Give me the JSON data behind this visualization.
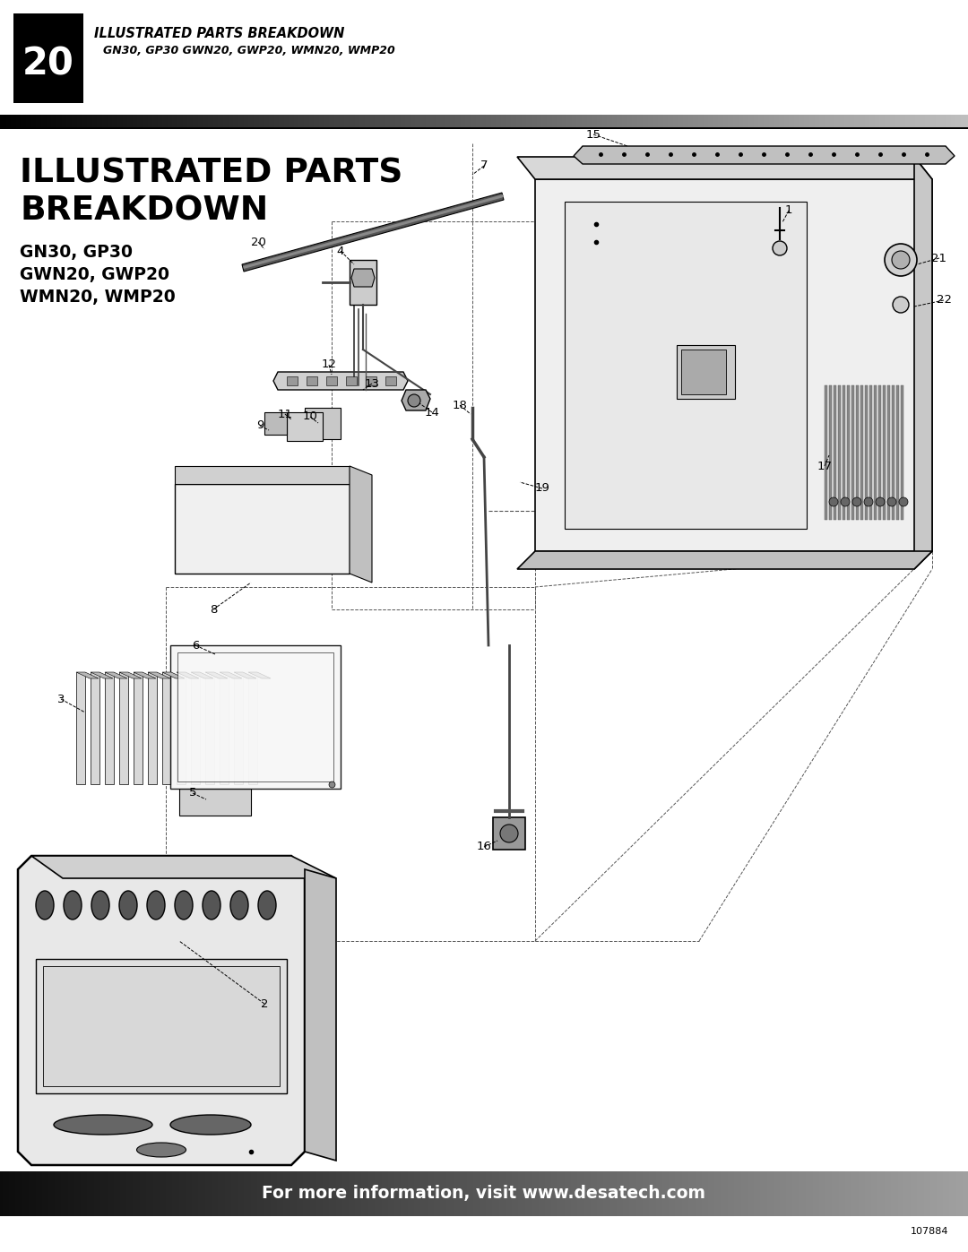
{
  "page_number": "20",
  "header_title": "ILLUSTRATED PARTS BREAKDOWN",
  "header_subtitle": "GN30, GP30 GWN20, GWP20, WMN20, WMP20",
  "main_title_line1": "ILLUSTRATED PARTS",
  "main_title_line2": "BREAKDOWN",
  "subtitle_line1": "GN30, GP30",
  "subtitle_line2": "GWN20, GWP20",
  "subtitle_line3": "WMN20, WMP20",
  "footer_text": "For more information, visit www.desatech.com",
  "doc_number": "107884",
  "bg_color": "#ffffff"
}
